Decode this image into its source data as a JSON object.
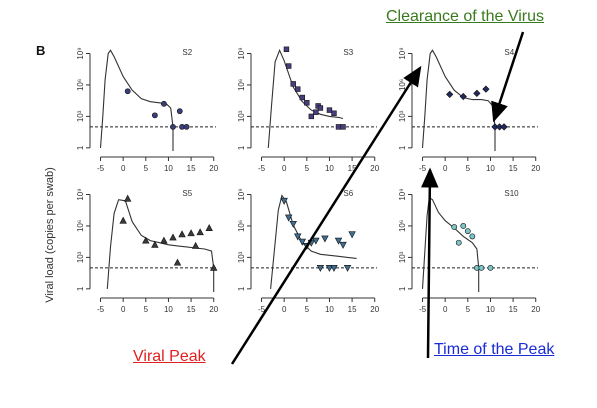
{
  "chart_data": {
    "type": "scatter",
    "panel_label": "B",
    "ylabel": "Viral load (copies per swab)",
    "x_ticks": [
      -5,
      0,
      5,
      10,
      15,
      20
    ],
    "y_ticks": [
      1,
      1000,
      1000000,
      1000000000
    ],
    "y_tick_labels": [
      "1",
      "10³",
      "10⁶",
      "10⁹"
    ],
    "y_scale": "log",
    "xlim": [
      -6,
      20.5
    ],
    "ylim_log10": [
      -0.3,
      10
    ],
    "detection_limit_log10": 2,
    "panels": [
      {
        "name": "S2",
        "marker": "circle",
        "color": "#3a3f7a",
        "points": [
          [
            1,
            5.4
          ],
          [
            7,
            3.1
          ],
          [
            9,
            4.2
          ],
          [
            11,
            2
          ],
          [
            12.5,
            3.5
          ],
          [
            13,
            2
          ],
          [
            14,
            2
          ]
        ],
        "curve": [
          [
            -5,
            0
          ],
          [
            -4.5,
            3
          ],
          [
            -4,
            6.5
          ],
          [
            -3.3,
            9
          ],
          [
            -2.8,
            9.3
          ],
          [
            -2,
            8.7
          ],
          [
            0,
            6.8
          ],
          [
            2,
            5.5
          ],
          [
            4,
            4.7
          ],
          [
            6,
            4.4
          ],
          [
            8,
            4.3
          ],
          [
            9.5,
            4.2
          ],
          [
            10.5,
            3.8
          ],
          [
            11,
            2
          ],
          [
            11,
            -0.3
          ]
        ]
      },
      {
        "name": "S3",
        "marker": "square",
        "color": "#4a3d7e",
        "points": [
          [
            0.5,
            9.4
          ],
          [
            1,
            7.8
          ],
          [
            2,
            6.1
          ],
          [
            3,
            5.6
          ],
          [
            4,
            4.8
          ],
          [
            5,
            4.3
          ],
          [
            6,
            3
          ],
          [
            7,
            3.4
          ],
          [
            7.5,
            4
          ],
          [
            8,
            3.8
          ],
          [
            10,
            3.6
          ],
          [
            11,
            3.3
          ],
          [
            12,
            2
          ],
          [
            13,
            2
          ]
        ],
        "curve": [
          [
            -3.5,
            0
          ],
          [
            -2.8,
            4
          ],
          [
            -2,
            8.2
          ],
          [
            -1,
            9.3
          ],
          [
            0,
            8.3
          ],
          [
            2,
            5.8
          ],
          [
            4,
            4.4
          ],
          [
            6,
            3.6
          ],
          [
            8,
            3.2
          ],
          [
            10,
            3
          ],
          [
            12,
            2.9
          ],
          [
            13,
            2.8
          ]
        ]
      },
      {
        "name": "S4",
        "marker": "diamond",
        "color": "#222a5c",
        "points": [
          [
            1,
            5.1
          ],
          [
            4,
            4.9
          ],
          [
            7,
            5.2
          ],
          [
            9,
            5.6
          ],
          [
            11,
            2
          ],
          [
            12,
            2
          ],
          [
            13,
            2
          ]
        ],
        "curve": [
          [
            -5,
            0
          ],
          [
            -4.5,
            3
          ],
          [
            -4,
            6.5
          ],
          [
            -3.3,
            9
          ],
          [
            -2.8,
            9.3
          ],
          [
            -2,
            8.7
          ],
          [
            0,
            6.8
          ],
          [
            2,
            5.5
          ],
          [
            4,
            4.8
          ],
          [
            6,
            4.6
          ],
          [
            8,
            4.6
          ],
          [
            9.5,
            4.5
          ],
          [
            10.5,
            4
          ],
          [
            11,
            2
          ],
          [
            11,
            -0.3
          ]
        ]
      },
      {
        "name": "S5",
        "marker": "triangle-up",
        "color": "#3a3a3a",
        "points": [
          [
            0,
            6.5
          ],
          [
            1,
            8.6
          ],
          [
            5,
            4.6
          ],
          [
            7,
            4.2
          ],
          [
            9,
            4.6
          ],
          [
            11,
            4.9
          ],
          [
            12,
            2.5
          ],
          [
            13,
            5.2
          ],
          [
            15,
            5.3
          ],
          [
            16,
            4.1
          ],
          [
            17,
            5.4
          ],
          [
            19,
            5.8
          ],
          [
            20,
            2
          ]
        ],
        "curve": [
          [
            -3.5,
            0
          ],
          [
            -2.8,
            4
          ],
          [
            -2,
            7.2
          ],
          [
            -1,
            8.5
          ],
          [
            0.5,
            8.4
          ],
          [
            2,
            6.4
          ],
          [
            4,
            5.1
          ],
          [
            6,
            4.6
          ],
          [
            8,
            4.4
          ],
          [
            10,
            4.2
          ],
          [
            12,
            4.1
          ],
          [
            14,
            4
          ],
          [
            16,
            3.9
          ],
          [
            18,
            3.8
          ],
          [
            19.5,
            3.6
          ],
          [
            20,
            2
          ],
          [
            20,
            -0.3
          ]
        ]
      },
      {
        "name": "S6",
        "marker": "triangle-down",
        "color": "#3f6e93",
        "points": [
          [
            0,
            8.4
          ],
          [
            1,
            6.8
          ],
          [
            2,
            6.2
          ],
          [
            3,
            5
          ],
          [
            4,
            4.5
          ],
          [
            5,
            4.1
          ],
          [
            6,
            4.4
          ],
          [
            7,
            4.6
          ],
          [
            8,
            2
          ],
          [
            9,
            4.8
          ],
          [
            10,
            2
          ],
          [
            11,
            2
          ],
          [
            12,
            4.6
          ],
          [
            13,
            4.2
          ],
          [
            14,
            2
          ],
          [
            15,
            5.2
          ]
        ],
        "curve": [
          [
            -3,
            0
          ],
          [
            -2.2,
            3.5
          ],
          [
            -1.3,
            7.5
          ],
          [
            -0.5,
            8.9
          ],
          [
            0.5,
            8.3
          ],
          [
            2,
            6.1
          ],
          [
            4,
            4.4
          ],
          [
            6,
            3.6
          ],
          [
            8,
            3.3
          ],
          [
            10,
            3.2
          ],
          [
            12,
            3.1
          ],
          [
            14,
            3
          ],
          [
            16,
            2.9
          ]
        ]
      },
      {
        "name": "S10",
        "marker": "circle",
        "color": "#7bc4c8",
        "points": [
          [
            2,
            5.9
          ],
          [
            3,
            4.4
          ],
          [
            4,
            6
          ],
          [
            5,
            5.5
          ],
          [
            6,
            5
          ],
          [
            7,
            2
          ],
          [
            8,
            2
          ],
          [
            10,
            2
          ]
        ],
        "curve": [
          [
            -5,
            0
          ],
          [
            -4.5,
            3.5
          ],
          [
            -4,
            7
          ],
          [
            -3.5,
            8.7
          ],
          [
            -2.8,
            8.5
          ],
          [
            -1.5,
            7.3
          ],
          [
            0,
            6.5
          ],
          [
            2,
            5.8
          ],
          [
            4,
            5
          ],
          [
            6,
            4.4
          ],
          [
            7,
            3.8
          ],
          [
            7.4,
            2
          ],
          [
            7.4,
            -0.3
          ]
        ]
      }
    ]
  },
  "annotations": {
    "clearance_label": "Clearance of the Virus",
    "peak_label": "Viral Peak",
    "time_label": "Time of the Peak",
    "clearance_color": "#3a7a1e",
    "peak_color": "#e02020",
    "time_color": "#1a2ad6",
    "arrow_color": "#000000"
  }
}
